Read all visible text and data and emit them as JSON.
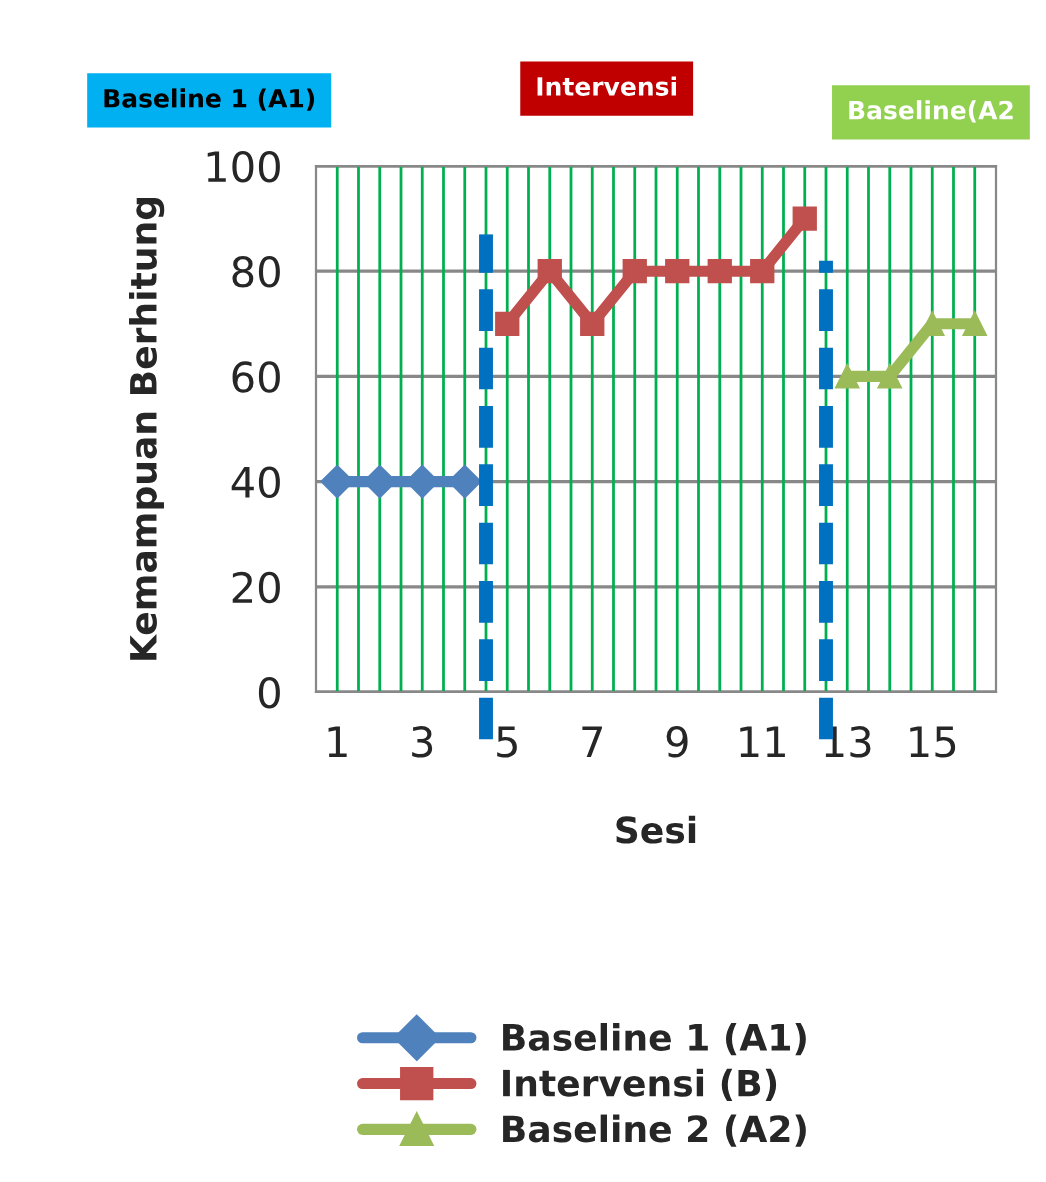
{
  "chart_data": {
    "type": "line",
    "xlabel": "Sesi",
    "ylabel": "Kemampuan Berhitung",
    "xlim": [
      0.5,
      16.5
    ],
    "xticks": [
      1,
      3,
      5,
      7,
      9,
      11,
      13,
      15
    ],
    "ylim": [
      0,
      100
    ],
    "yticks": [
      0,
      20,
      40,
      60,
      80,
      100
    ],
    "grid": true,
    "legend": "bottom",
    "annotations": [
      "Baseline 1 (A1)",
      "Intervensi",
      "Baseline(A2"
    ],
    "ref_lines": [
      {
        "axis": "x",
        "value": 4.5,
        "color": "#0070c0",
        "line_style": "dashed"
      },
      {
        "axis": "x",
        "value": 12.5,
        "color": "#0070c0",
        "line_style": "dashed"
      }
    ],
    "series": [
      {
        "name": "Baseline 1 (A1)",
        "color": "#4f81bd",
        "marker": "diamond",
        "x": [
          1,
          2,
          3,
          4
        ],
        "values": [
          40,
          40,
          40,
          40
        ]
      },
      {
        "name": "Intervensi (B)",
        "color": "#c0504d",
        "marker": "square",
        "x": [
          5,
          6,
          7,
          8,
          9,
          10,
          11,
          12
        ],
        "values": [
          70,
          80,
          70,
          80,
          80,
          80,
          80,
          90
        ]
      },
      {
        "name": "Baseline 2 (A2)",
        "color": "#9bbb59",
        "marker": "triangle",
        "x": [
          13,
          14,
          15,
          16
        ],
        "values": [
          60,
          60,
          70,
          70
        ]
      }
    ]
  }
}
